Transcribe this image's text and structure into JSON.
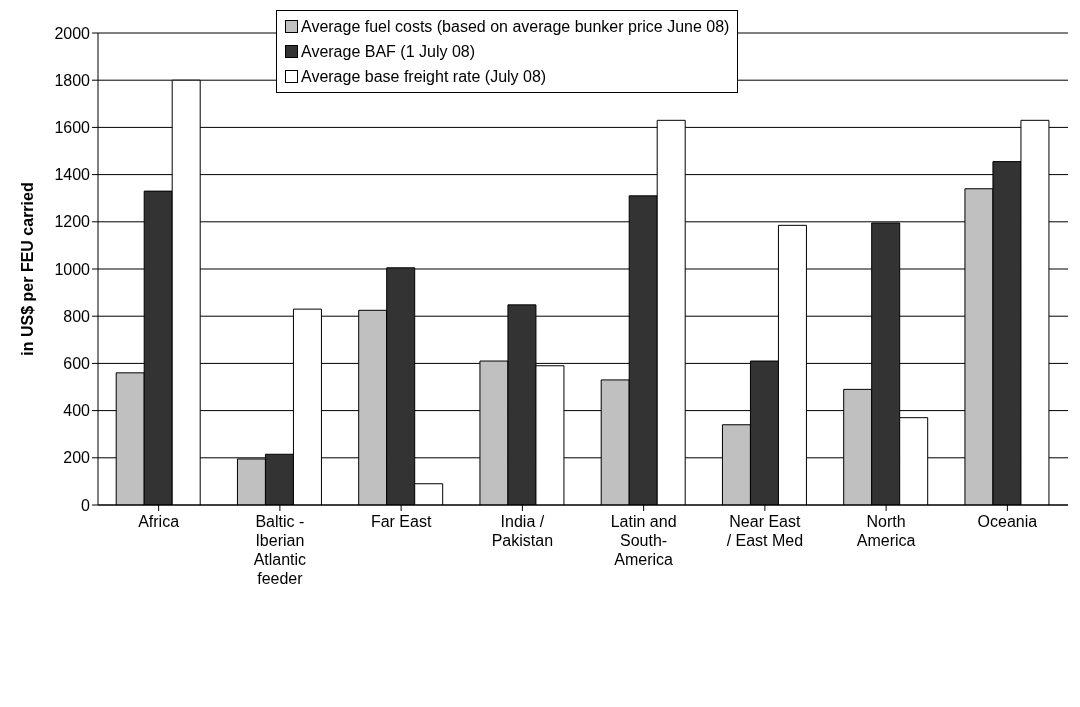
{
  "chart_data": {
    "type": "bar",
    "ylabel": "in US$ per FEU carried",
    "categories": [
      "Africa",
      "Baltic - Iberian Atlantic feeder",
      "Far East",
      "India / Pakistan",
      "Latin and South-America",
      "Near East / East Med",
      "North America",
      "Oceania"
    ],
    "series": [
      {
        "name": "Average fuel costs (based on average bunker price June 08)",
        "color": "#c0c0c0",
        "values": [
          560,
          195,
          825,
          610,
          530,
          340,
          490,
          1340
        ]
      },
      {
        "name": "Average BAF (1 July 08)",
        "color": "#333333",
        "values": [
          1330,
          215,
          1005,
          848,
          1310,
          610,
          1195,
          1455
        ]
      },
      {
        "name": "Average base freight rate (July 08)",
        "color": "#ffffff",
        "values": [
          1800,
          830,
          90,
          590,
          1630,
          1185,
          370,
          1630
        ]
      }
    ],
    "ylim": [
      0,
      2000
    ],
    "yticks": [
      0,
      200,
      400,
      600,
      800,
      1000,
      1200,
      1400,
      1600,
      1800,
      2000
    ],
    "grid": "y",
    "legend": "top"
  }
}
